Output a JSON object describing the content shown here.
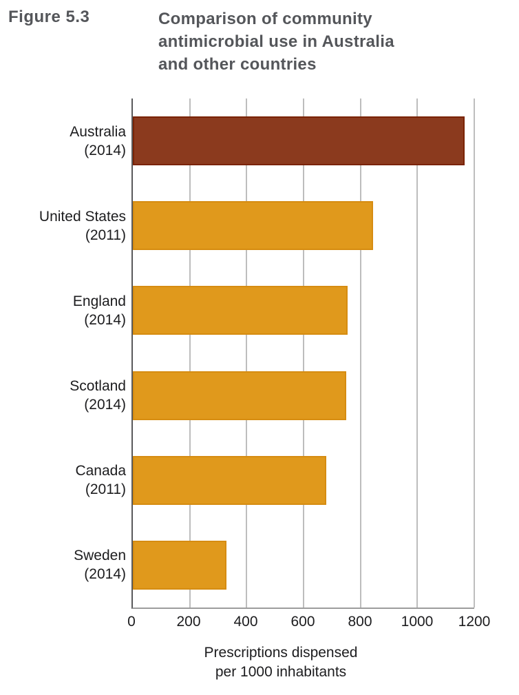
{
  "figure": {
    "label": "Figure 5.3",
    "title_lines": {
      "0": "Comparison of community",
      "1": "antimicrobial use in Australia",
      "2": "and other countries"
    }
  },
  "chart_data": {
    "type": "bar",
    "orientation": "horizontal",
    "title": "Figure 5.3 — Comparison of community antimicrobial use in Australia and other countries",
    "xlabel_lines": {
      "0": "Prescriptions dispensed",
      "1": "per 1000 inhabitants"
    },
    "xlim": [
      0,
      1200
    ],
    "x_ticks": [
      0,
      200,
      400,
      600,
      800,
      1000,
      1200
    ],
    "grid": "vertical-gridlines-on",
    "legend": "none",
    "categories": [
      "Australia (2014)",
      "United States (2011)",
      "England (2014)",
      "Scotland (2014)",
      "Canada (2011)",
      "Sweden (2014)"
    ],
    "values": [
      1165,
      845,
      755,
      750,
      680,
      330
    ],
    "bars": [
      {
        "country": "Australia",
        "year": "(2014)",
        "value": 1165,
        "fill": "#8b3a1e",
        "border": "#7a2305"
      },
      {
        "country": "United States",
        "year": "(2011)",
        "value": 845,
        "fill": "#e0991c",
        "border": "#d68c11"
      },
      {
        "country": "England",
        "year": "(2014)",
        "value": 755,
        "fill": "#e0991c",
        "border": "#d68c11"
      },
      {
        "country": "Scotland",
        "year": "(2014)",
        "value": 750,
        "fill": "#e0991c",
        "border": "#d68c11"
      },
      {
        "country": "Canada",
        "year": "(2011)",
        "value": 680,
        "fill": "#e0991c",
        "border": "#d68c11"
      },
      {
        "country": "Sweden",
        "year": "(2014)",
        "value": 330,
        "fill": "#e0991c",
        "border": "#d68c11"
      }
    ],
    "colors": {
      "highlight_bar": "#8b3a1e",
      "default_bar": "#e0991c",
      "gridline": "#bdbdbd",
      "axis_line": "#58595b",
      "title_text": "#54565a",
      "label_text": "#1c1c1e"
    }
  }
}
